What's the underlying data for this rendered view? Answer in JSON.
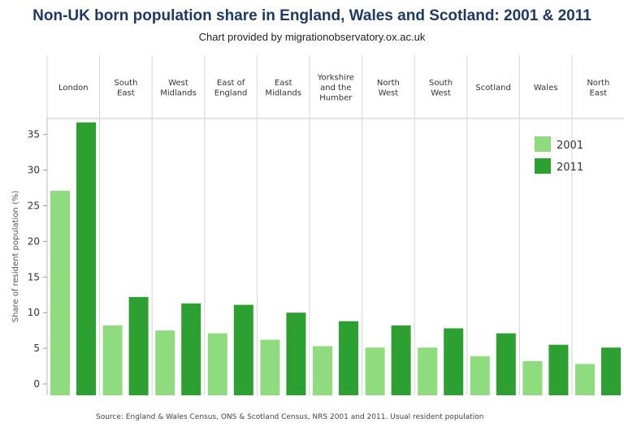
{
  "chart_data": {
    "type": "bar",
    "title": "Non-UK born population share in England, Wales and Scotland: 2001 & 2011",
    "subtitle": "Chart provided by migrationobservatory.ox.ac.uk",
    "ylabel": "Share of resident population (%)",
    "xlabel": "",
    "source": "Source: England & Wales Census, ONS & Scotland Census, NRS 2001 and 2011. Usual resident population",
    "categories": [
      [
        "London"
      ],
      [
        "South",
        "East"
      ],
      [
        "West",
        "Midlands"
      ],
      [
        "East of",
        "England"
      ],
      [
        "East",
        "Midlands"
      ],
      [
        "Yorkshire",
        "and the",
        "Humber"
      ],
      [
        "North",
        "West"
      ],
      [
        "South",
        "West"
      ],
      [
        "Scotland"
      ],
      [
        "Wales"
      ],
      [
        "North",
        "East"
      ]
    ],
    "series": [
      {
        "name": "2001",
        "color": "#8fdc7e",
        "values": [
          27.1,
          8.2,
          7.5,
          7.1,
          6.2,
          5.3,
          5.1,
          5.1,
          3.9,
          3.2,
          2.8
        ]
      },
      {
        "name": "2011",
        "color": "#2da032",
        "values": [
          36.7,
          12.2,
          11.3,
          11.1,
          10.0,
          8.8,
          8.2,
          7.8,
          7.1,
          5.5,
          5.1
        ]
      }
    ],
    "yticks": [
      0,
      5,
      10,
      15,
      20,
      25,
      30,
      35
    ],
    "ylim": [
      0,
      38
    ],
    "legend_position": "top-right",
    "grid": false
  }
}
